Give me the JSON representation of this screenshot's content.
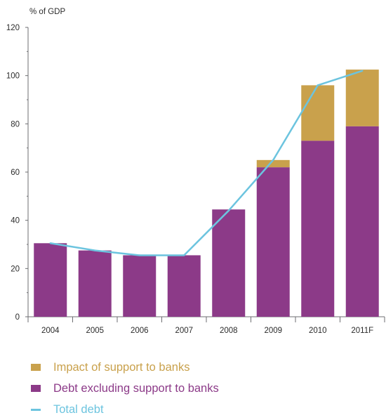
{
  "colors": {
    "support": "#C9A14C",
    "debt_excl": "#8C3A88",
    "total": "#6CC4DF",
    "axis": "#6d6e71",
    "text": "#2b2b2b"
  },
  "chart_data": {
    "type": "bar",
    "stacked": true,
    "ylabel": "% of GDP",
    "ylim": [
      0,
      120
    ],
    "yticks": [
      "0",
      "20",
      "40",
      "60",
      "80",
      "100",
      "120"
    ],
    "yticks_values": [
      0,
      20,
      40,
      60,
      80,
      100,
      120
    ],
    "categories": [
      "2004",
      "2005",
      "2006",
      "2007",
      "2008",
      "2009",
      "2010",
      "2011F"
    ],
    "series": [
      {
        "name": "Debt excluding support to banks",
        "type": "bar",
        "values": [
          30.5,
          27.5,
          25.5,
          25.5,
          44.5,
          62,
          73,
          79
        ]
      },
      {
        "name": "Impact of support to banks",
        "type": "bar",
        "values": [
          0,
          0,
          0,
          0,
          0,
          3,
          23,
          23.5
        ]
      },
      {
        "name": "Total debt",
        "type": "line",
        "values": [
          30.5,
          27.5,
          25.5,
          25.5,
          44,
          65,
          96,
          102
        ]
      }
    ],
    "legend": [
      "Impact of support to banks",
      "Debt excluding support to banks",
      "Total debt"
    ],
    "legend_position": "bottom-left",
    "grid": false
  }
}
